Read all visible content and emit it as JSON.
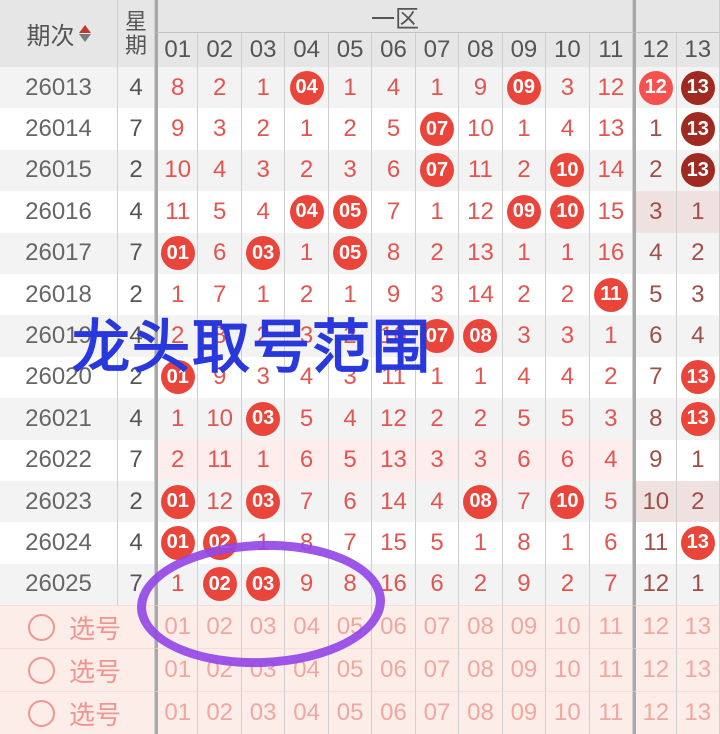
{
  "header": {
    "period_label": "期次",
    "week_label_lines": [
      "星",
      "期"
    ],
    "zone_label": "一区",
    "columns": [
      "01",
      "02",
      "03",
      "04",
      "05",
      "06",
      "07",
      "08",
      "09",
      "10",
      "11",
      "12",
      "13"
    ]
  },
  "colors": {
    "ball_red": "#ea453b",
    "ball_bright": "#f7514f",
    "ball_dark": "#9e2a22",
    "text_red": "#e25550",
    "text_dark_red": "#a04e48",
    "row_highlight_pink": "#fdeded",
    "cell_highlight_tan": "#efe1df",
    "pick_bg": "#fcede9",
    "pick_text": "#f0a7a1",
    "annotation_blue": "#2838dc",
    "annotation_purple": "#9448e6"
  },
  "table": {
    "rows": [
      {
        "period": "26013",
        "week": "4",
        "cells": [
          {
            "v": "8"
          },
          {
            "v": "2"
          },
          {
            "v": "1"
          },
          {
            "v": "04",
            "ball": "red"
          },
          {
            "v": "1"
          },
          {
            "v": "4"
          },
          {
            "v": "1"
          },
          {
            "v": "9"
          },
          {
            "v": "09",
            "ball": "red"
          },
          {
            "v": "3"
          },
          {
            "v": "12"
          },
          {
            "v": "12",
            "ball": "bright"
          },
          {
            "v": "13",
            "ball": "dark"
          }
        ]
      },
      {
        "period": "26014",
        "week": "7",
        "cells": [
          {
            "v": "9"
          },
          {
            "v": "3"
          },
          {
            "v": "2"
          },
          {
            "v": "1"
          },
          {
            "v": "2"
          },
          {
            "v": "5"
          },
          {
            "v": "07",
            "ball": "red"
          },
          {
            "v": "10"
          },
          {
            "v": "1"
          },
          {
            "v": "4"
          },
          {
            "v": "13"
          },
          {
            "v": "1"
          },
          {
            "v": "13",
            "ball": "dark"
          }
        ]
      },
      {
        "period": "26015",
        "week": "2",
        "cells": [
          {
            "v": "10"
          },
          {
            "v": "4"
          },
          {
            "v": "3"
          },
          {
            "v": "2"
          },
          {
            "v": "3"
          },
          {
            "v": "6"
          },
          {
            "v": "07",
            "ball": "red"
          },
          {
            "v": "11"
          },
          {
            "v": "2"
          },
          {
            "v": "10",
            "ball": "red"
          },
          {
            "v": "14"
          },
          {
            "v": "2"
          },
          {
            "v": "13",
            "ball": "dark"
          }
        ]
      },
      {
        "period": "26016",
        "week": "4",
        "cells": [
          {
            "v": "11"
          },
          {
            "v": "5"
          },
          {
            "v": "4"
          },
          {
            "v": "04",
            "ball": "red"
          },
          {
            "v": "05",
            "ball": "red"
          },
          {
            "v": "7"
          },
          {
            "v": "1"
          },
          {
            "v": "12"
          },
          {
            "v": "09",
            "ball": "red"
          },
          {
            "v": "10",
            "ball": "red"
          },
          {
            "v": "15"
          },
          {
            "v": "3",
            "bg": "tan"
          },
          {
            "v": "1",
            "bg": "tan"
          }
        ]
      },
      {
        "period": "26017",
        "week": "7",
        "cells": [
          {
            "v": "01",
            "ball": "red"
          },
          {
            "v": "6"
          },
          {
            "v": "03",
            "ball": "red"
          },
          {
            "v": "1"
          },
          {
            "v": "05",
            "ball": "red"
          },
          {
            "v": "8"
          },
          {
            "v": "2"
          },
          {
            "v": "13"
          },
          {
            "v": "1"
          },
          {
            "v": "1"
          },
          {
            "v": "16"
          },
          {
            "v": "4"
          },
          {
            "v": "2"
          }
        ]
      },
      {
        "period": "26018",
        "week": "2",
        "cells": [
          {
            "v": "1"
          },
          {
            "v": "7"
          },
          {
            "v": "1"
          },
          {
            "v": "2"
          },
          {
            "v": "1"
          },
          {
            "v": "9"
          },
          {
            "v": "3"
          },
          {
            "v": "14"
          },
          {
            "v": "2"
          },
          {
            "v": "2"
          },
          {
            "v": "11",
            "ball": "red"
          },
          {
            "v": "5"
          },
          {
            "v": "3"
          }
        ]
      },
      {
        "period": "26019",
        "week": "4",
        "cells": [
          {
            "v": "2"
          },
          {
            "v": "8"
          },
          {
            "v": "2"
          },
          {
            "v": "3"
          },
          {
            "v": "2"
          },
          {
            "v": "10"
          },
          {
            "v": "07",
            "ball": "red"
          },
          {
            "v": "08",
            "ball": "red"
          },
          {
            "v": "3"
          },
          {
            "v": "3"
          },
          {
            "v": "1"
          },
          {
            "v": "6"
          },
          {
            "v": "4"
          }
        ]
      },
      {
        "period": "26020",
        "week": "2",
        "cells": [
          {
            "v": "01",
            "ball": "red"
          },
          {
            "v": "9"
          },
          {
            "v": "3"
          },
          {
            "v": "4"
          },
          {
            "v": "3"
          },
          {
            "v": "11"
          },
          {
            "v": "1"
          },
          {
            "v": "1"
          },
          {
            "v": "4"
          },
          {
            "v": "4"
          },
          {
            "v": "2"
          },
          {
            "v": "7"
          },
          {
            "v": "13",
            "ball": "red"
          }
        ]
      },
      {
        "period": "26021",
        "week": "4",
        "cells": [
          {
            "v": "1"
          },
          {
            "v": "10"
          },
          {
            "v": "03",
            "ball": "red"
          },
          {
            "v": "5"
          },
          {
            "v": "4"
          },
          {
            "v": "12"
          },
          {
            "v": "2"
          },
          {
            "v": "2"
          },
          {
            "v": "5"
          },
          {
            "v": "5"
          },
          {
            "v": "3"
          },
          {
            "v": "8"
          },
          {
            "v": "13",
            "ball": "red"
          }
        ]
      },
      {
        "period": "26022",
        "week": "7",
        "cells": [
          {
            "v": "2",
            "bg": "pink"
          },
          {
            "v": "11",
            "bg": "pink"
          },
          {
            "v": "1",
            "bg": "pink"
          },
          {
            "v": "6",
            "bg": "pink"
          },
          {
            "v": "5",
            "bg": "pink"
          },
          {
            "v": "13",
            "bg": "pink"
          },
          {
            "v": "3",
            "bg": "pink"
          },
          {
            "v": "3",
            "bg": "pink"
          },
          {
            "v": "6",
            "bg": "pink"
          },
          {
            "v": "6",
            "bg": "pink"
          },
          {
            "v": "4",
            "bg": "pink"
          },
          {
            "v": "9"
          },
          {
            "v": "1"
          }
        ]
      },
      {
        "period": "26023",
        "week": "2",
        "cells": [
          {
            "v": "01",
            "ball": "red"
          },
          {
            "v": "12"
          },
          {
            "v": "03",
            "ball": "red"
          },
          {
            "v": "7"
          },
          {
            "v": "6"
          },
          {
            "v": "14"
          },
          {
            "v": "4"
          },
          {
            "v": "08",
            "ball": "red"
          },
          {
            "v": "7"
          },
          {
            "v": "10",
            "ball": "red"
          },
          {
            "v": "5"
          },
          {
            "v": "10",
            "bg": "tan"
          },
          {
            "v": "2",
            "bg": "tan"
          }
        ]
      },
      {
        "period": "26024",
        "week": "4",
        "cells": [
          {
            "v": "01",
            "ball": "red"
          },
          {
            "v": "02",
            "ball": "red"
          },
          {
            "v": "1"
          },
          {
            "v": "8"
          },
          {
            "v": "7"
          },
          {
            "v": "15"
          },
          {
            "v": "5"
          },
          {
            "v": "1"
          },
          {
            "v": "8"
          },
          {
            "v": "1"
          },
          {
            "v": "6"
          },
          {
            "v": "11"
          },
          {
            "v": "13",
            "ball": "red"
          }
        ]
      },
      {
        "period": "26025",
        "week": "7",
        "cells": [
          {
            "v": "1"
          },
          {
            "v": "02",
            "ball": "red"
          },
          {
            "v": "03",
            "ball": "red"
          },
          {
            "v": "9"
          },
          {
            "v": "8"
          },
          {
            "v": "16"
          },
          {
            "v": "6"
          },
          {
            "v": "2"
          },
          {
            "v": "9"
          },
          {
            "v": "2"
          },
          {
            "v": "7"
          },
          {
            "v": "12"
          },
          {
            "v": "1"
          }
        ]
      }
    ]
  },
  "picks": {
    "label": "选号",
    "rows": [
      [
        "01",
        "02",
        "03",
        "04",
        "05",
        "06",
        "07",
        "08",
        "09",
        "10",
        "11",
        "12",
        "13"
      ],
      [
        "01",
        "02",
        "03",
        "04",
        "05",
        "06",
        "07",
        "08",
        "09",
        "10",
        "11",
        "12",
        "13"
      ],
      [
        "01",
        "02",
        "03",
        "04",
        "05",
        "06",
        "07",
        "08",
        "09",
        "10",
        "11",
        "12",
        "13"
      ]
    ]
  },
  "annotations": {
    "blue_text": "龙头取号范围"
  }
}
